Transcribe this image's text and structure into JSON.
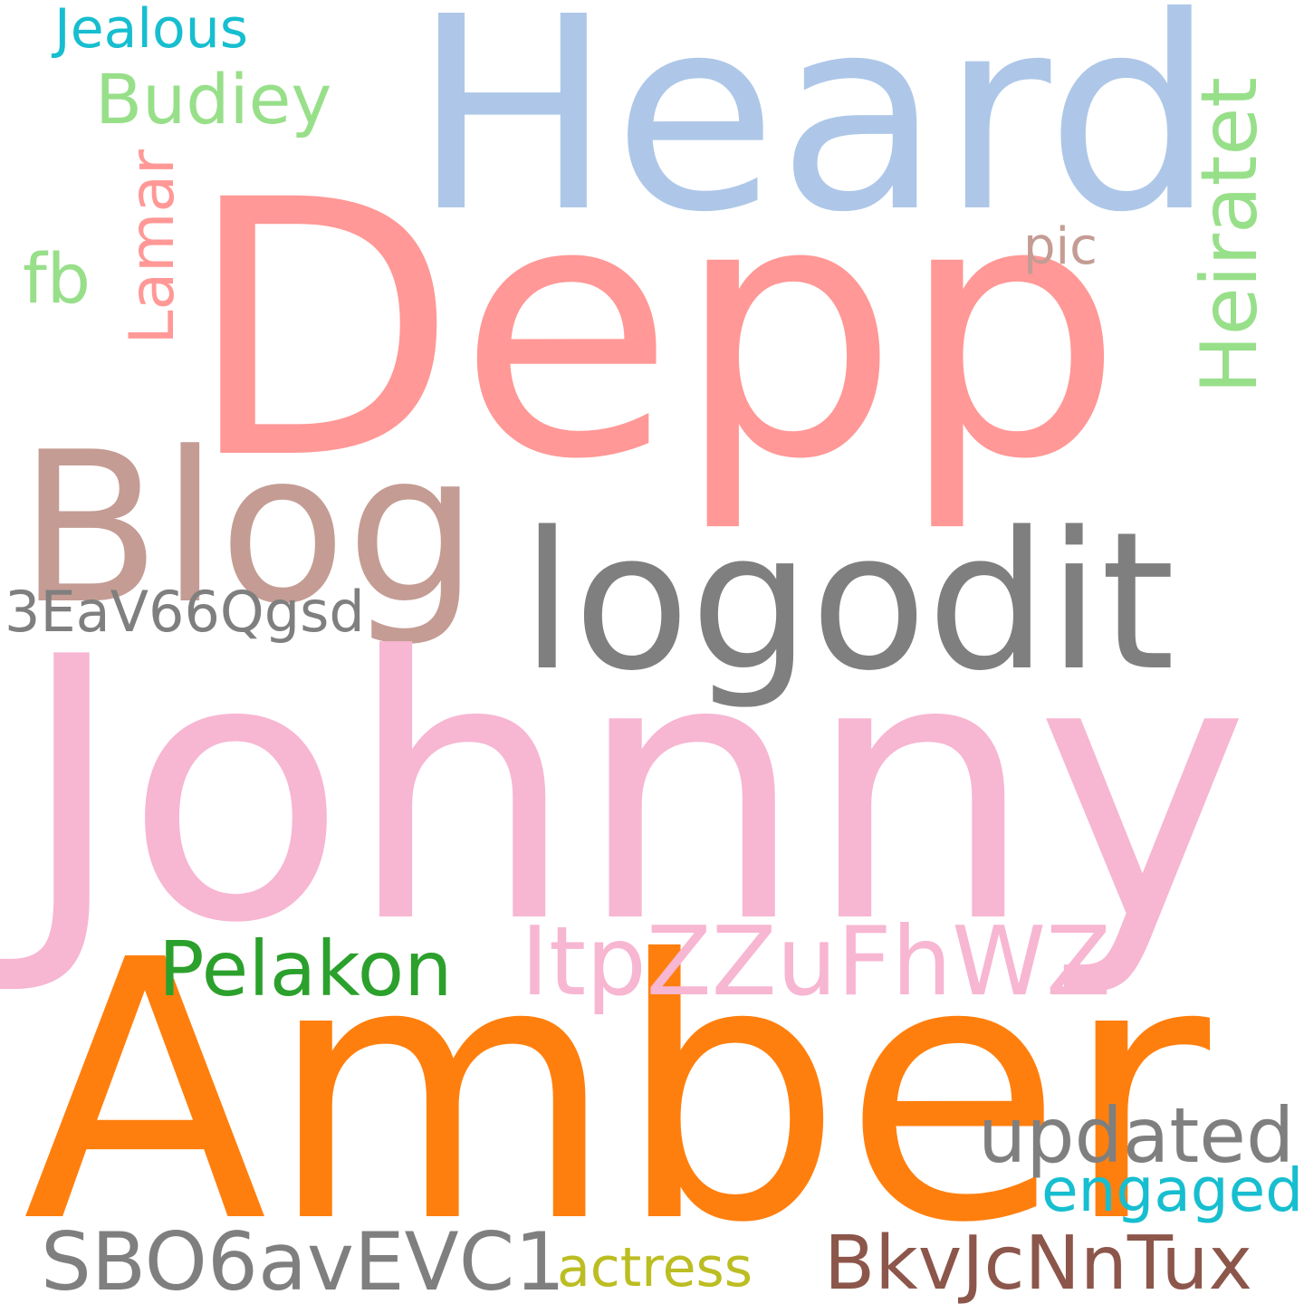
{
  "words": {
    "heard": "Heard",
    "depp": "Depp",
    "blog": "Blog",
    "logodit": "logodit",
    "johnny": "Johnny",
    "amber": "Amber",
    "itpzzufhwz": "ItpZZuFhWZ",
    "pelakon": "Pelakon",
    "updated": "updated",
    "engaged": "engaged",
    "sbo6avevc1": "SBO6avEVC1",
    "actress": "actress",
    "bkvjcnntux": "BkvJcNnTux",
    "code_3eav66qgsd": "3EaV66Qgsd",
    "jealous": "Jealous",
    "budiey": "Budiey",
    "fb": "fb",
    "pic": "pic",
    "lamar": "Lamar",
    "heiratet": "Heiratet"
  },
  "colors": {
    "background": "#ffffff",
    "light_blue": "#aec7e8",
    "salmon": "#ff9896",
    "rose_brown": "#c49c94",
    "gray": "#7f7f7f",
    "pink": "#f7b6d2",
    "orange": "#ff7f0e",
    "green": "#2ca02c",
    "light_green": "#98df8a",
    "cyan": "#17becf",
    "olive": "#bcbd22",
    "brown": "#8c564b"
  }
}
